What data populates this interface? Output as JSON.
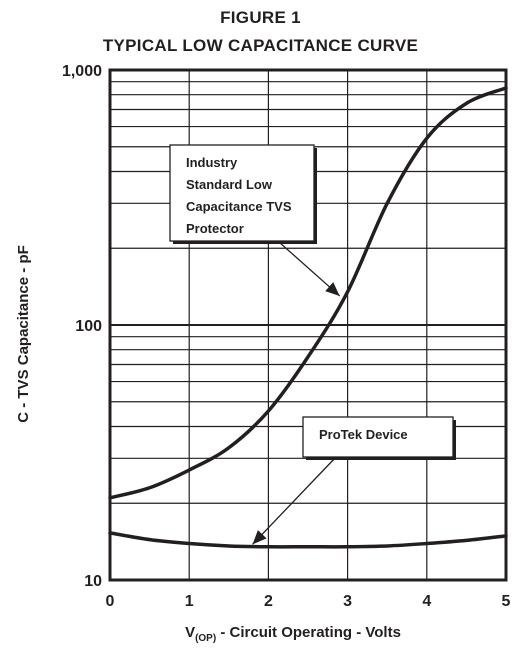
{
  "chart_data": {
    "type": "line",
    "title": "FIGURE 1",
    "subtitle": "TYPICAL LOW CAPACITANCE CURVE",
    "xlabel_main": "V",
    "xlabel_sub": "(OP)",
    "xlabel_rest": " - Circuit Operating - Volts",
    "ylabel": "C - TVS Capacitance - pF",
    "xlim": [
      0,
      5
    ],
    "ylim": [
      10,
      1000
    ],
    "yscale": "log",
    "grid": true,
    "xticks": [
      {
        "value": 0,
        "label": "0"
      },
      {
        "value": 1,
        "label": "1"
      },
      {
        "value": 2,
        "label": "2"
      },
      {
        "value": 3,
        "label": "3"
      },
      {
        "value": 4,
        "label": "4"
      },
      {
        "value": 5,
        "label": "5"
      }
    ],
    "yticks": [
      {
        "value": 10,
        "label": "10"
      },
      {
        "value": 100,
        "label": "100"
      },
      {
        "value": 1000,
        "label": "1,000"
      }
    ],
    "series": [
      {
        "x": [
          0,
          0.5,
          1,
          1.5,
          2,
          2.5,
          3,
          3.5,
          4,
          4.5,
          5
        ],
        "y": [
          21,
          23,
          27,
          33,
          46,
          75,
          135,
          300,
          540,
          740,
          850
        ]
      },
      {
        "x": [
          0,
          0.5,
          1,
          1.5,
          2,
          2.5,
          3,
          3.5,
          4,
          4.5,
          5
        ],
        "y": [
          15.3,
          14.4,
          13.9,
          13.6,
          13.5,
          13.5,
          13.5,
          13.6,
          13.9,
          14.3,
          14.9
        ]
      }
    ],
    "annotations": [
      {
        "lines": [
          "Industry",
          "Standard Low",
          "Capacitance TVS",
          "Protector"
        ],
        "x": 2.9,
        "y": 130
      },
      {
        "lines": [
          "ProTek Device"
        ],
        "x": 1.8,
        "y": 13.8
      }
    ]
  }
}
